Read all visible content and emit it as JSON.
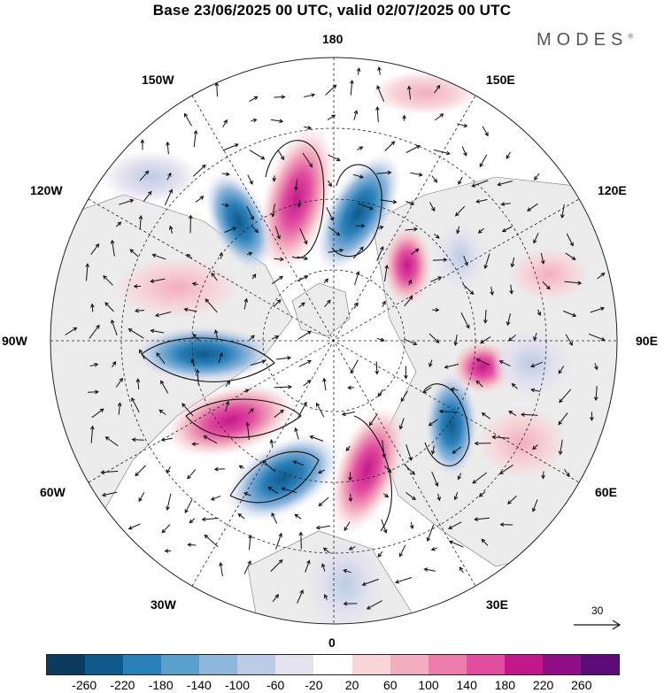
{
  "title": "Base 23/06/2025 00 UTC, valid 02/07/2025 00 UTC",
  "logo": "MODES",
  "logo_mark": "®",
  "map": {
    "projection": "north polar stereographic",
    "field_color_positive": "#d4147f",
    "field_color_negative": "#08508a",
    "land_color": "#ececec",
    "longitude_labels": {
      "top": "180",
      "bottom": "0",
      "left": "90W",
      "right": "90E",
      "upper_left_1": "150W",
      "upper_left_2": "120W",
      "lower_left_1": "60W",
      "lower_left_2": "30W",
      "upper_right_1": "150E",
      "upper_right_2": "120E",
      "lower_right_1": "60E",
      "lower_right_2": "30E"
    },
    "reference_vector": "30"
  },
  "colorbar": {
    "colors": [
      "#0d3b5e",
      "#0e5a8a",
      "#2a80b9",
      "#5aa0cf",
      "#8fb6db",
      "#bccbe5",
      "#e4e2ef",
      "#ffffff",
      "#f7d5d9",
      "#f2aebe",
      "#ec7cab",
      "#e14d9f",
      "#c2188a",
      "#8f0f86",
      "#5e0b7a"
    ],
    "tick_labels": [
      "-260",
      "-220",
      "-180",
      "-140",
      "-100",
      "-60",
      "-20",
      "20",
      "60",
      "100",
      "140",
      "180",
      "220",
      "260"
    ]
  }
}
